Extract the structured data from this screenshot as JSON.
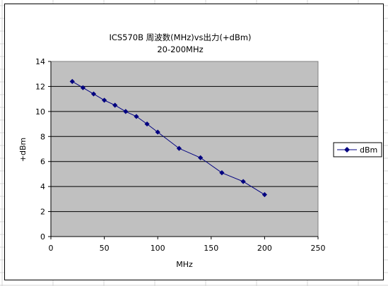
{
  "chart_data": {
    "type": "line",
    "title": "ICS570B 周波数(MHz)vs出力(+dBm)",
    "subtitle": "20-200MHz",
    "xlabel": "MHz",
    "ylabel": "+dBm",
    "xlim": [
      0,
      250
    ],
    "ylim": [
      0,
      14
    ],
    "x_ticks": [
      "0",
      "50",
      "100",
      "150",
      "200",
      "250"
    ],
    "y_ticks": [
      "0",
      "2",
      "4",
      "6",
      "8",
      "10",
      "12",
      "14"
    ],
    "grid": "horizontal",
    "legend_position": "right",
    "plot_background": "#c0c0c0",
    "series": [
      {
        "name": "dBm",
        "color": "#000080",
        "marker": "diamond",
        "x": [
          20,
          30,
          40,
          50,
          60,
          70,
          80,
          90,
          100,
          120,
          140,
          160,
          180,
          200
        ],
        "y": [
          12.4,
          11.9,
          11.4,
          10.9,
          10.5,
          10.0,
          9.6,
          9.0,
          8.35,
          7.05,
          6.3,
          5.1,
          4.4,
          3.35
        ]
      }
    ]
  }
}
